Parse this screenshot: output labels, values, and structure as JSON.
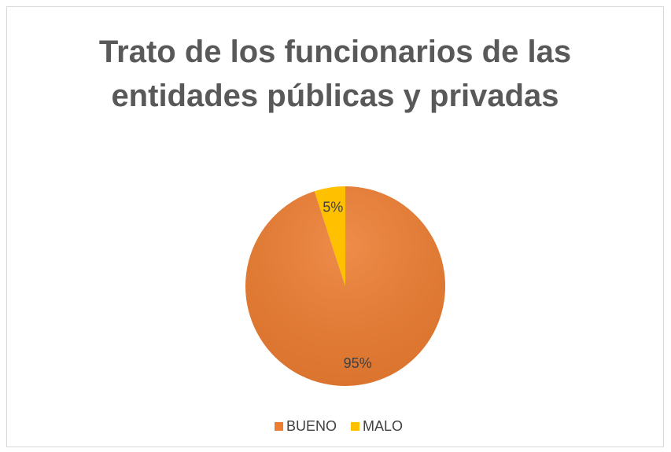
{
  "chart_data": {
    "type": "pie",
    "title": "Trato de los funcionarios de las entidades públicas y privadas",
    "categories": [
      "BUENO",
      "MALO"
    ],
    "values": [
      95,
      5
    ],
    "value_labels": [
      "95%",
      "5%"
    ],
    "colors": [
      "#ed7d31",
      "#ffc000"
    ],
    "legend": "bottom"
  }
}
